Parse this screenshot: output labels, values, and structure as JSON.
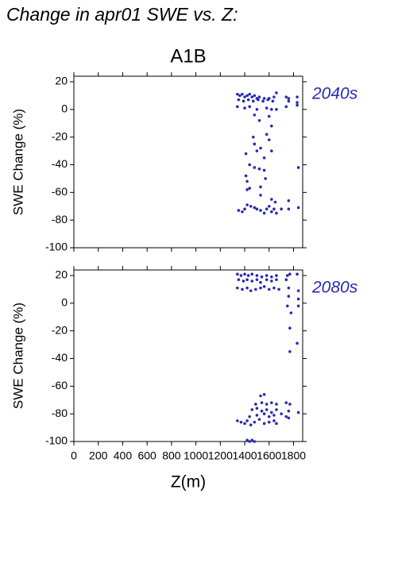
{
  "title": "Change in apr01 SWE vs. Z:",
  "chart_data": [
    {
      "type": "scatter",
      "title": "A1B",
      "y_label": "SWE Change (%)",
      "xlim": [
        0,
        1875
      ],
      "xticks": [
        0,
        200,
        400,
        600,
        800,
        1000,
        1200,
        1400,
        1600,
        1800
      ],
      "ylim": [
        -100,
        24
      ],
      "yticks": [
        -100,
        -80,
        -60,
        -40,
        -20,
        0,
        20
      ],
      "series": [
        {
          "name": "2040s",
          "color": "#2a2ab0",
          "x": [
            1340,
            1360,
            1380,
            1400,
            1420,
            1440,
            1460,
            1480,
            1500,
            1520,
            1560,
            1600,
            1640,
            1660,
            1740,
            1760,
            1830,
            1350,
            1390,
            1430,
            1470,
            1510,
            1550,
            1590,
            1630,
            1760,
            1830,
            1340,
            1400,
            1440,
            1500,
            1580,
            1620,
            1660,
            1740,
            1830,
            1480,
            1520,
            1600,
            1620,
            1470,
            1480,
            1500,
            1530,
            1580,
            1600,
            1620,
            1560,
            1410,
            1440,
            1480,
            1520,
            1560,
            1840,
            1410,
            1420,
            1530,
            1570,
            1420,
            1440,
            1530,
            1620,
            1650,
            1760,
            1350,
            1380,
            1400,
            1420,
            1450,
            1480,
            1500,
            1530,
            1560,
            1580,
            1600,
            1620,
            1640,
            1660,
            1700,
            1760,
            1840
          ],
          "y": [
            11,
            10,
            11,
            9,
            10,
            11,
            9,
            10,
            8,
            9,
            8,
            8,
            9,
            12,
            9,
            8,
            9,
            7,
            6,
            7,
            6,
            7,
            6,
            7,
            6,
            6,
            5,
            2,
            1,
            2,
            0,
            1,
            0,
            0,
            2,
            3,
            -4,
            -8,
            -5,
            -12,
            -20,
            -25,
            -30,
            -28,
            -18,
            -22,
            -30,
            -35,
            -32,
            -40,
            -42,
            -43,
            -44,
            -42,
            -48,
            -52,
            -56,
            -50,
            -58,
            -57,
            -62,
            -65,
            -67,
            -66,
            -73,
            -74,
            -72,
            -69,
            -70,
            -71,
            -72,
            -73,
            -75,
            -72,
            -70,
            -74,
            -72,
            -75,
            -72,
            -72,
            -71
          ]
        }
      ]
    },
    {
      "type": "scatter",
      "x_label": "Z(m)",
      "y_label": "SWE Change (%)",
      "xlim": [
        0,
        1875
      ],
      "xticks": [
        0,
        200,
        400,
        600,
        800,
        1000,
        1200,
        1400,
        1600,
        1800
      ],
      "ylim": [
        -100,
        24
      ],
      "yticks": [
        -100,
        -80,
        -60,
        -40,
        -20,
        0,
        20
      ],
      "series": [
        {
          "name": "2080s",
          "color": "#2a2ab0",
          "x": [
            1340,
            1370,
            1400,
            1430,
            1460,
            1500,
            1540,
            1580,
            1620,
            1660,
            1750,
            1770,
            1830,
            1350,
            1390,
            1420,
            1460,
            1500,
            1530,
            1580,
            1620,
            1660,
            1740,
            1340,
            1380,
            1420,
            1450,
            1490,
            1530,
            1560,
            1600,
            1640,
            1680,
            1760,
            1840,
            1760,
            1840,
            1750,
            1780,
            1840,
            1770,
            1770,
            1830,
            1530,
            1560,
            1490,
            1540,
            1580,
            1620,
            1660,
            1740,
            1770,
            1460,
            1500,
            1540,
            1580,
            1620,
            1660,
            1760,
            1840,
            1440,
            1500,
            1560,
            1600,
            1640,
            1700,
            1740,
            1760,
            1340,
            1370,
            1400,
            1420,
            1450,
            1480,
            1520,
            1560,
            1600,
            1640,
            1660,
            1420,
            1440,
            1460,
            1480
          ],
          "y": [
            21,
            20,
            21,
            20,
            21,
            20,
            19,
            20,
            19,
            20,
            20,
            21,
            21,
            17,
            16,
            17,
            16,
            17,
            15,
            17,
            16,
            17,
            17,
            11,
            10,
            11,
            9,
            10,
            11,
            12,
            10,
            11,
            10,
            11,
            9,
            5,
            3,
            -2,
            -7,
            -2,
            -18,
            -35,
            -29,
            -67,
            -66,
            -73,
            -72,
            -73,
            -72,
            -73,
            -72,
            -73,
            -77,
            -76,
            -78,
            -77,
            -79,
            -77,
            -78,
            -79,
            -82,
            -81,
            -80,
            -82,
            -81,
            -80,
            -82,
            -83,
            -85,
            -86,
            -87,
            -85,
            -88,
            -86,
            -84,
            -87,
            -86,
            -85,
            -87,
            -99,
            -100,
            -99,
            -100
          ]
        }
      ]
    }
  ]
}
